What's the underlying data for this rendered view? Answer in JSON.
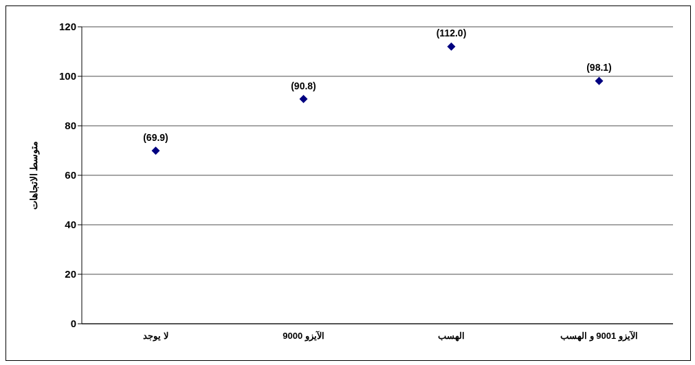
{
  "chart_data": {
    "type": "scatter",
    "ylabel": "متوسط الاتجاهات",
    "categories": [
      "لا يوجد",
      "الآيزو 9000",
      "الهسب",
      "الآيزو 9001 و الهسب"
    ],
    "series": [
      {
        "color": "#000080",
        "values": [
          69.9,
          90.8,
          112.0,
          98.1
        ],
        "value_labels": [
          "(69.9)",
          "(90.8)",
          "(112.0)",
          "(98.1)"
        ]
      }
    ],
    "ylim": [
      0,
      120
    ],
    "yticks": [
      0,
      20,
      40,
      60,
      80,
      100,
      120
    ],
    "grid": "y",
    "marker": "diamond"
  }
}
